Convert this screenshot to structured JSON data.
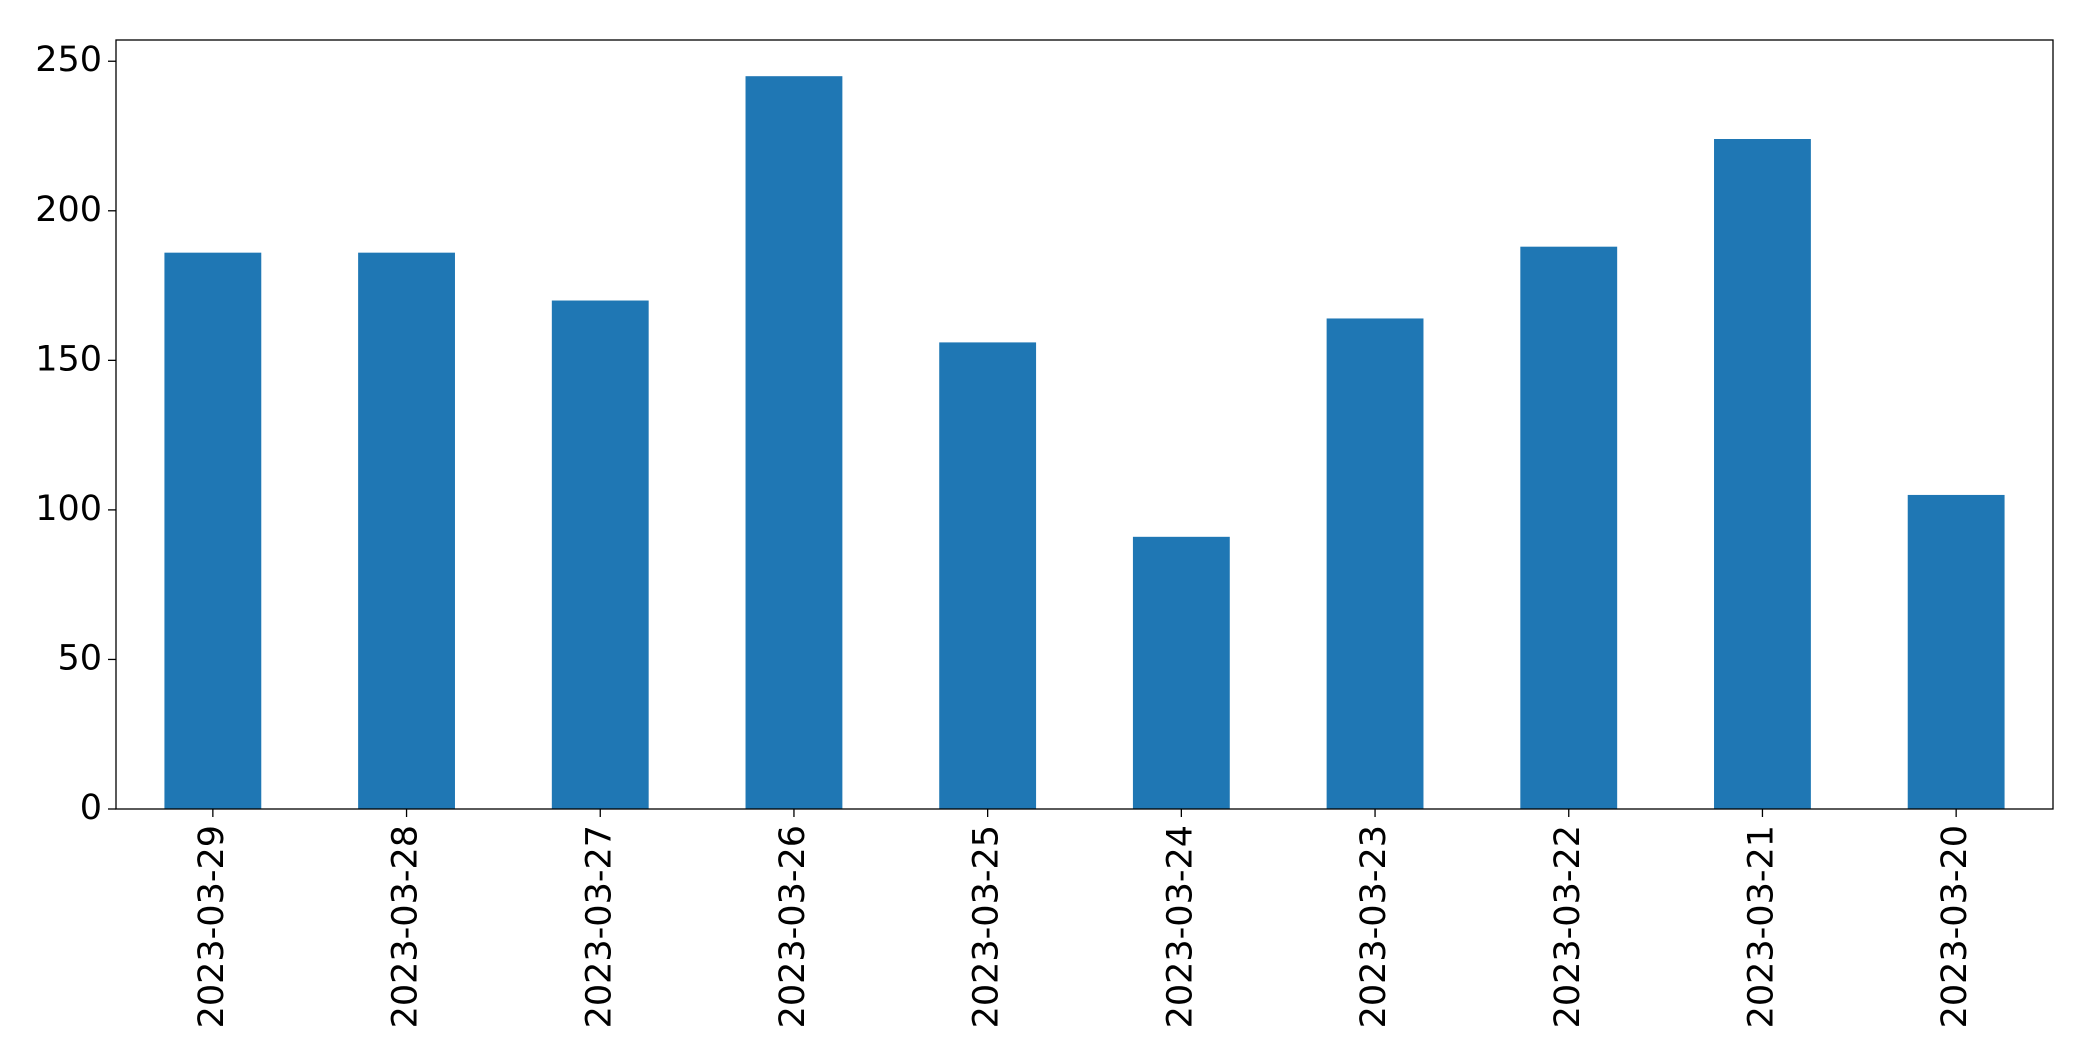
{
  "chart_data": {
    "type": "bar",
    "categories": [
      "2023-03-29",
      "2023-03-28",
      "2023-03-27",
      "2023-03-26",
      "2023-03-25",
      "2023-03-24",
      "2023-03-23",
      "2023-03-22",
      "2023-03-21",
      "2023-03-20"
    ],
    "values": [
      186,
      186,
      170,
      245,
      156,
      91,
      164,
      188,
      224,
      105
    ],
    "color": "#1f77b4",
    "ylim": [
      0,
      257.1
    ],
    "yticks": [
      0,
      50,
      100,
      150,
      200,
      250
    ],
    "grid": false
  }
}
